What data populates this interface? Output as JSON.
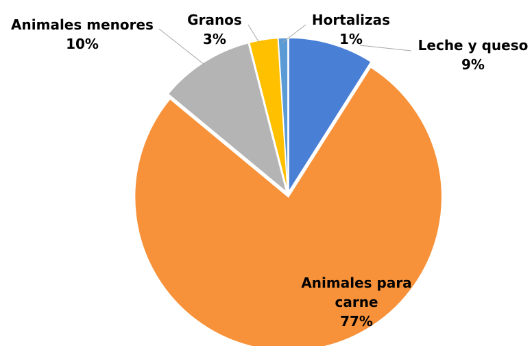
{
  "chart_data": {
    "type": "pie",
    "categories": [
      "Leche y queso",
      "Animales para carne",
      "Animales menores",
      "Granos",
      "Hortalizas"
    ],
    "values": [
      9,
      77,
      10,
      3,
      1
    ],
    "value_labels": [
      "9%",
      "77%",
      "10%",
      "3%",
      "1%"
    ],
    "colors": [
      "#4a7fd6",
      "#f7923a",
      "#b4b4b4",
      "#ffc000",
      "#5b9bd5"
    ]
  }
}
